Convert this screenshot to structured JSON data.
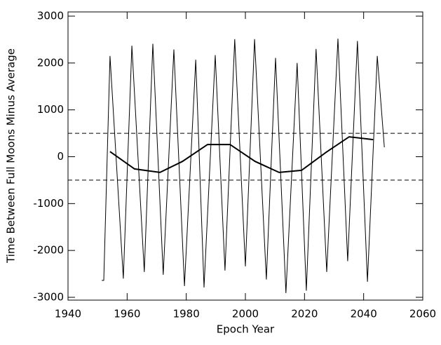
{
  "chart_data": {
    "type": "line",
    "x_label": "Epoch Year",
    "y_label": "Time Between Full Moons Minus Average",
    "xlim": [
      1940,
      2060
    ],
    "xticks": [
      1940,
      1960,
      1980,
      2000,
      2020,
      2040,
      2060
    ],
    "ylim": [
      -3060,
      3090
    ],
    "yticks": [
      -3000,
      -2000,
      -1000,
      0,
      1000,
      2000,
      3000
    ],
    "hlines": [
      500,
      -500
    ],
    "hline_style": "dashed",
    "hline_color": "#000000",
    "series": [
      {
        "color": "#000000",
        "line_width": 1,
        "x": [
          1951.4,
          1952.1,
          1954.2,
          1958.7,
          1961.6,
          1965.8,
          1968.7,
          1972.2,
          1975.8,
          1979.4,
          1983.2,
          1986.0,
          1989.8,
          1993.1,
          1996.4,
          2000.0,
          2003.1,
          2007.1,
          2010.2,
          2013.7,
          2017.5,
          2020.6,
          2023.9,
          2027.5,
          2031.3,
          2034.6,
          2037.9,
          2041.3,
          2044.6,
          2047.0
        ],
        "values": [
          -2640,
          -2640,
          2150,
          -2600,
          2370,
          -2460,
          2410,
          -2520,
          2290,
          -2760,
          2070,
          -2790,
          2170,
          -2430,
          2510,
          -2340,
          2510,
          -2620,
          2110,
          -2910,
          2000,
          -2860,
          2300,
          -2460,
          2520,
          -2230,
          2470,
          -2670,
          2150,
          200
        ]
      },
      {
        "color": "#000000",
        "line_width": 2,
        "x": [
          1954.2,
          1962.5,
          1971.1,
          1978.7,
          1987.2,
          1994.8,
          2003.3,
          2011.4,
          2019.0,
          2027.3,
          2035.1,
          2043.2
        ],
        "values": [
          110,
          -260,
          -335,
          -100,
          260,
          260,
          -100,
          -335,
          -290,
          95,
          425,
          365
        ]
      }
    ]
  }
}
